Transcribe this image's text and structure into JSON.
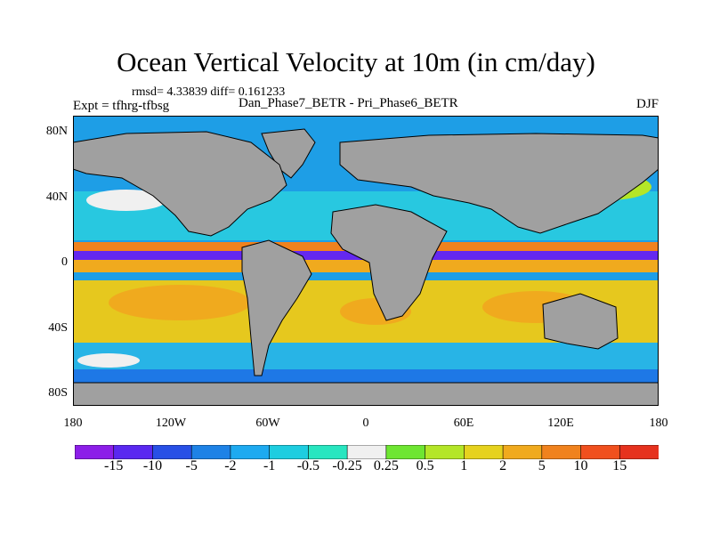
{
  "title": "Ocean Vertical Velocity at 10m (in cm/day)",
  "stats": "rmsd= 4.33839 diff= 0.161233",
  "expt": "Expt = tfhrg-tfbsg",
  "cases": "Dan_Phase7_BETR - Pri_Phase6_BETR",
  "season": "DJF",
  "lat_ticks": [
    "80N",
    "40N",
    "0",
    "40S",
    "80S"
  ],
  "lon_ticks": [
    "180",
    "120W",
    "60W",
    "0",
    "60E",
    "120E",
    "180"
  ],
  "colorbar": {
    "labels": [
      "-15",
      "-10",
      "-5",
      "-2",
      "-1",
      "-0.5",
      "-0.25",
      "0.25",
      "0.5",
      "1",
      "2",
      "5",
      "10",
      "15"
    ],
    "colors": [
      "#8c1ee8",
      "#5a28f0",
      "#2850e6",
      "#1e82e6",
      "#1eaaf0",
      "#1ecde0",
      "#28e6c0",
      "#f0f0f0",
      "#6ee632",
      "#b4e628",
      "#e6d21e",
      "#f0aa1e",
      "#f0821e",
      "#f0501e",
      "#e6321e"
    ]
  },
  "colors": {
    "land": "#a0a0a0",
    "ocean_background": "#1e9ee6"
  }
}
